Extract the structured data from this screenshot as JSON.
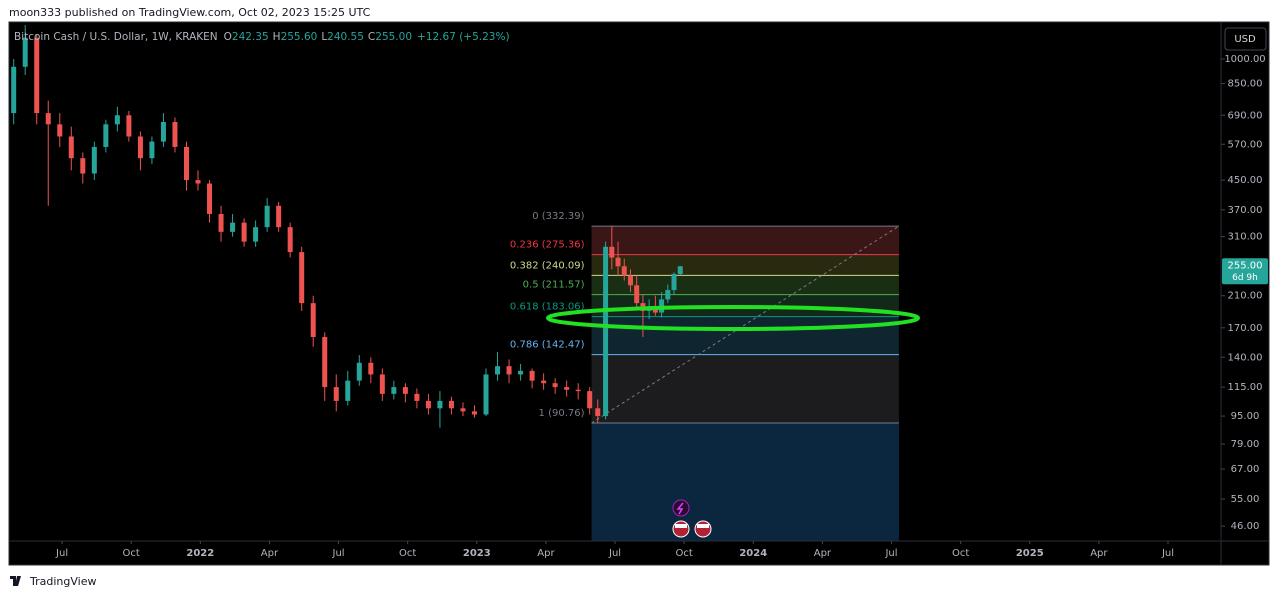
{
  "header": {
    "publisher": "moon333 published on TradingView.com, Oct 02, 2023 15:25 UTC"
  },
  "chart_data": {
    "type": "candlestick",
    "title": "Bitcoin Cash / U.S. Dollar, 1W, KRAKEN",
    "legend_items": [
      {
        "key": "O",
        "value": "242.35"
      },
      {
        "key": "H",
        "value": "255.60"
      },
      {
        "key": "L",
        "value": "240.55"
      },
      {
        "key": "C",
        "value": "255.00"
      }
    ],
    "change": "+12.67 (+5.23%)",
    "currency": "USD",
    "up_color": "#26a69a",
    "down_color": "#ef5350",
    "log_scale": true,
    "grid": false,
    "x": [
      3.9,
      4.4,
      4.9,
      5.4,
      5.9,
      6.4,
      6.9,
      7.4,
      7.9,
      8.4,
      8.9,
      9.4,
      9.9,
      10.4,
      10.9,
      11.4,
      11.9,
      12.4,
      12.9,
      13.4,
      13.9,
      14.4,
      14.9,
      15.4,
      15.9,
      16.4,
      16.9,
      17.4,
      17.9,
      18.4,
      18.9,
      19.4,
      19.9,
      20.4,
      20.9,
      21.4,
      21.9,
      22.4,
      22.9,
      23.4,
      23.9,
      24.4,
      24.9,
      25.4,
      25.9,
      26.4,
      26.9,
      27.4,
      27.9,
      28.4,
      28.9,
      29.25,
      29.59,
      29.86,
      30.13,
      30.4,
      30.67,
      30.94,
      31.21,
      31.48,
      31.75,
      32.02,
      32.29,
      32.56,
      32.83
    ],
    "open": [
      700,
      950,
      1150,
      700,
      650,
      600,
      520,
      470,
      560,
      650,
      690,
      600,
      520,
      580,
      660,
      560,
      450,
      440,
      360,
      320,
      340,
      300,
      330,
      380,
      330,
      280,
      200,
      160,
      115,
      105,
      120,
      135,
      125,
      110,
      115,
      110,
      105,
      100,
      105,
      100,
      98,
      96,
      125,
      132,
      125,
      128,
      120,
      118,
      115,
      113,
      112,
      100,
      95,
      290,
      270,
      255,
      240,
      225,
      200,
      190,
      196,
      188,
      205,
      218,
      242.35
    ],
    "high": [
      1000,
      1250,
      1180,
      760,
      700,
      640,
      540,
      580,
      670,
      730,
      710,
      620,
      600,
      700,
      680,
      580,
      480,
      450,
      380,
      360,
      350,
      345,
      400,
      390,
      340,
      290,
      210,
      165,
      125,
      128,
      142,
      140,
      130,
      120,
      118,
      114,
      110,
      112,
      108,
      104,
      102,
      130,
      145,
      138,
      134,
      130,
      126,
      122,
      120,
      118,
      115,
      106,
      300,
      332.39,
      300,
      268,
      250,
      240,
      212,
      205,
      210,
      215,
      226,
      245,
      255.6
    ],
    "low": [
      650,
      900,
      650,
      380,
      560,
      480,
      440,
      450,
      540,
      620,
      580,
      480,
      500,
      560,
      540,
      420,
      420,
      340,
      300,
      310,
      290,
      290,
      320,
      320,
      270,
      190,
      150,
      105,
      98,
      102,
      116,
      118,
      105,
      106,
      104,
      100,
      96,
      88,
      96,
      95,
      94,
      95,
      120,
      118,
      120,
      114,
      113,
      110,
      108,
      106,
      96,
      90.76,
      93,
      250,
      240,
      232,
      215,
      195,
      160,
      180,
      184,
      182,
      200,
      212,
      240.55
    ],
    "close": [
      950,
      1150,
      700,
      650,
      600,
      520,
      470,
      560,
      650,
      690,
      600,
      520,
      580,
      660,
      560,
      450,
      440,
      360,
      320,
      340,
      300,
      330,
      380,
      330,
      280,
      200,
      160,
      115,
      105,
      120,
      135,
      125,
      110,
      115,
      110,
      105,
      100,
      105,
      100,
      98,
      96,
      125,
      132,
      125,
      128,
      120,
      118,
      115,
      113,
      112,
      100,
      95,
      290,
      270,
      255,
      240,
      225,
      200,
      190,
      196,
      188,
      205,
      218,
      242.35,
      255
    ],
    "xlim": [
      3.74,
      56.3
    ],
    "ylim": [
      41.7,
      1276
    ],
    "xticks": [
      {
        "value": 6,
        "label": "Jul"
      },
      {
        "value": 9,
        "label": "Oct"
      },
      {
        "value": 12,
        "label": "2022"
      },
      {
        "value": 15,
        "label": "Apr"
      },
      {
        "value": 18,
        "label": "Jul"
      },
      {
        "value": 21,
        "label": "Oct"
      },
      {
        "value": 24,
        "label": "2023"
      },
      {
        "value": 27,
        "label": "Apr"
      },
      {
        "value": 30,
        "label": "Jul"
      },
      {
        "value": 33,
        "label": "Oct"
      },
      {
        "value": 36,
        "label": "2024"
      },
      {
        "value": 39,
        "label": "Apr"
      },
      {
        "value": 42,
        "label": "Jul"
      },
      {
        "value": 45,
        "label": "Oct"
      },
      {
        "value": 48,
        "label": "2025"
      },
      {
        "value": 51,
        "label": "Apr"
      },
      {
        "value": 54,
        "label": "Jul"
      }
    ],
    "yticks": [
      {
        "value": 1000,
        "label": "1000.00"
      },
      {
        "value": 850,
        "label": "850.00"
      },
      {
        "value": 690,
        "label": "690.00"
      },
      {
        "value": 570,
        "label": "570.00"
      },
      {
        "value": 450,
        "label": "450.00"
      },
      {
        "value": 370,
        "label": "370.00"
      },
      {
        "value": 310,
        "label": "310.00"
      },
      {
        "value": 210,
        "label": "210.00"
      },
      {
        "value": 170,
        "label": "170.00"
      },
      {
        "value": 140,
        "label": "140.00"
      },
      {
        "value": 115,
        "label": "115.00"
      },
      {
        "value": 95,
        "label": "95.00"
      },
      {
        "value": 79,
        "label": "79.00"
      },
      {
        "value": 67,
        "label": "67.00"
      },
      {
        "value": 55,
        "label": "55.00"
      },
      {
        "value": 46,
        "label": "46.00"
      }
    ],
    "last_price": {
      "value": 255,
      "label": "255.00",
      "countdown": "6d 9h",
      "color": "#26a69a"
    },
    "fibonacci": {
      "x_start": 28.98,
      "x_end": 42.32,
      "levels": [
        {
          "ratio": 0,
          "price": 332.39,
          "label": "0 (332.39)",
          "color": "#787b86",
          "fill": "#3a1616"
        },
        {
          "ratio": 0.236,
          "price": 275.36,
          "label": "0.236 (275.36)",
          "color": "#f23645",
          "fill": "#28290f"
        },
        {
          "ratio": 0.382,
          "price": 240.09,
          "label": "0.382 (240.09)",
          "color": "#cddc8a",
          "fill": "#1a2e14"
        },
        {
          "ratio": 0.5,
          "price": 211.57,
          "label": "0.5 (211.57)",
          "color": "#4caf50",
          "fill": "#12291a"
        },
        {
          "ratio": 0.618,
          "price": 183.06,
          "label": "0.618 (183.06)",
          "color": "#089981",
          "fill": "#0f2530"
        },
        {
          "ratio": 0.786,
          "price": 142.47,
          "label": "0.786 (142.47)",
          "color": "#64b5f6",
          "fill": "#1c1c1e"
        },
        {
          "ratio": 1,
          "price": 90.76,
          "label": "1 (90.76)",
          "color": "#787b86",
          "fill": "#0b2740"
        }
      ]
    }
  },
  "footer": {
    "brand": "TradingView"
  }
}
